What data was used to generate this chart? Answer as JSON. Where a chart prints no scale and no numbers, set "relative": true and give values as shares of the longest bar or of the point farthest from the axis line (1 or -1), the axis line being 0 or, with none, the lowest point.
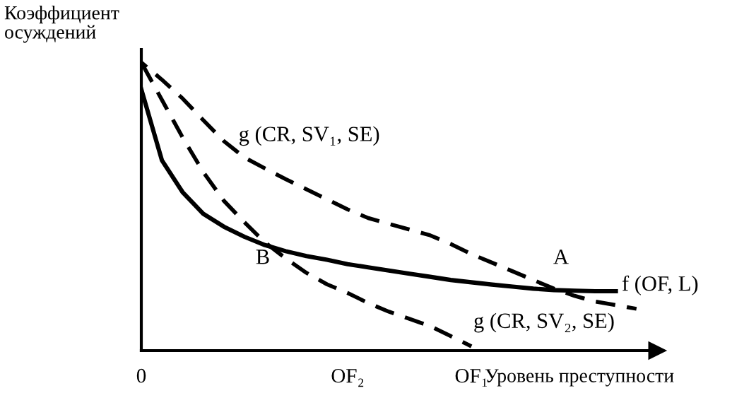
{
  "chart_data": {
    "type": "line",
    "relative": true,
    "xlabel": "Уровень преступности",
    "ylabel": "Коэффициент\nосуждений",
    "categories": [
      "0",
      null,
      null,
      null,
      null,
      null,
      null,
      null,
      null,
      null,
      "OF₂",
      null,
      null,
      null,
      null,
      null,
      "OF₁",
      null,
      null,
      null,
      null,
      null,
      null,
      null,
      null,
      null
    ],
    "series": [
      {
        "name": "f (OF, L)",
        "color": "#000000",
        "line_style": "solid",
        "values": [
          0.907,
          0.66,
          0.55,
          0.475,
          0.43,
          0.395,
          0.366,
          0.345,
          0.328,
          0.315,
          0.3,
          0.289,
          0.278,
          0.267,
          0.256,
          0.245,
          0.237,
          0.229,
          0.222,
          0.215,
          0.21,
          0.208,
          0.206,
          0.206,
          null,
          null
        ]
      },
      {
        "name": "g (CR, SV₁, SE)",
        "color": "#000000",
        "line_style": "dashed",
        "values": [
          1,
          0.94,
          0.875,
          0.8,
          0.727,
          0.67,
          0.632,
          0.595,
          0.56,
          0.525,
          0.49,
          0.46,
          0.44,
          0.42,
          0.4,
          0.37,
          0.335,
          0.305,
          0.275,
          0.245,
          0.215,
          0.19,
          0.17,
          0.158,
          0.145,
          null
        ]
      },
      {
        "name": "g (CR, SV₂, SE)",
        "color": "#000000",
        "line_style": "dashed",
        "values": [
          1,
          0.87,
          0.74,
          0.62,
          0.52,
          0.445,
          0.375,
          0.32,
          0.27,
          0.23,
          0.2,
          0.165,
          0.135,
          0.11,
          0.085,
          0.05,
          0.015,
          null,
          null,
          null,
          null,
          null,
          null,
          null,
          null,
          null
        ]
      }
    ],
    "annotations": [
      "A",
      "B"
    ]
  }
}
